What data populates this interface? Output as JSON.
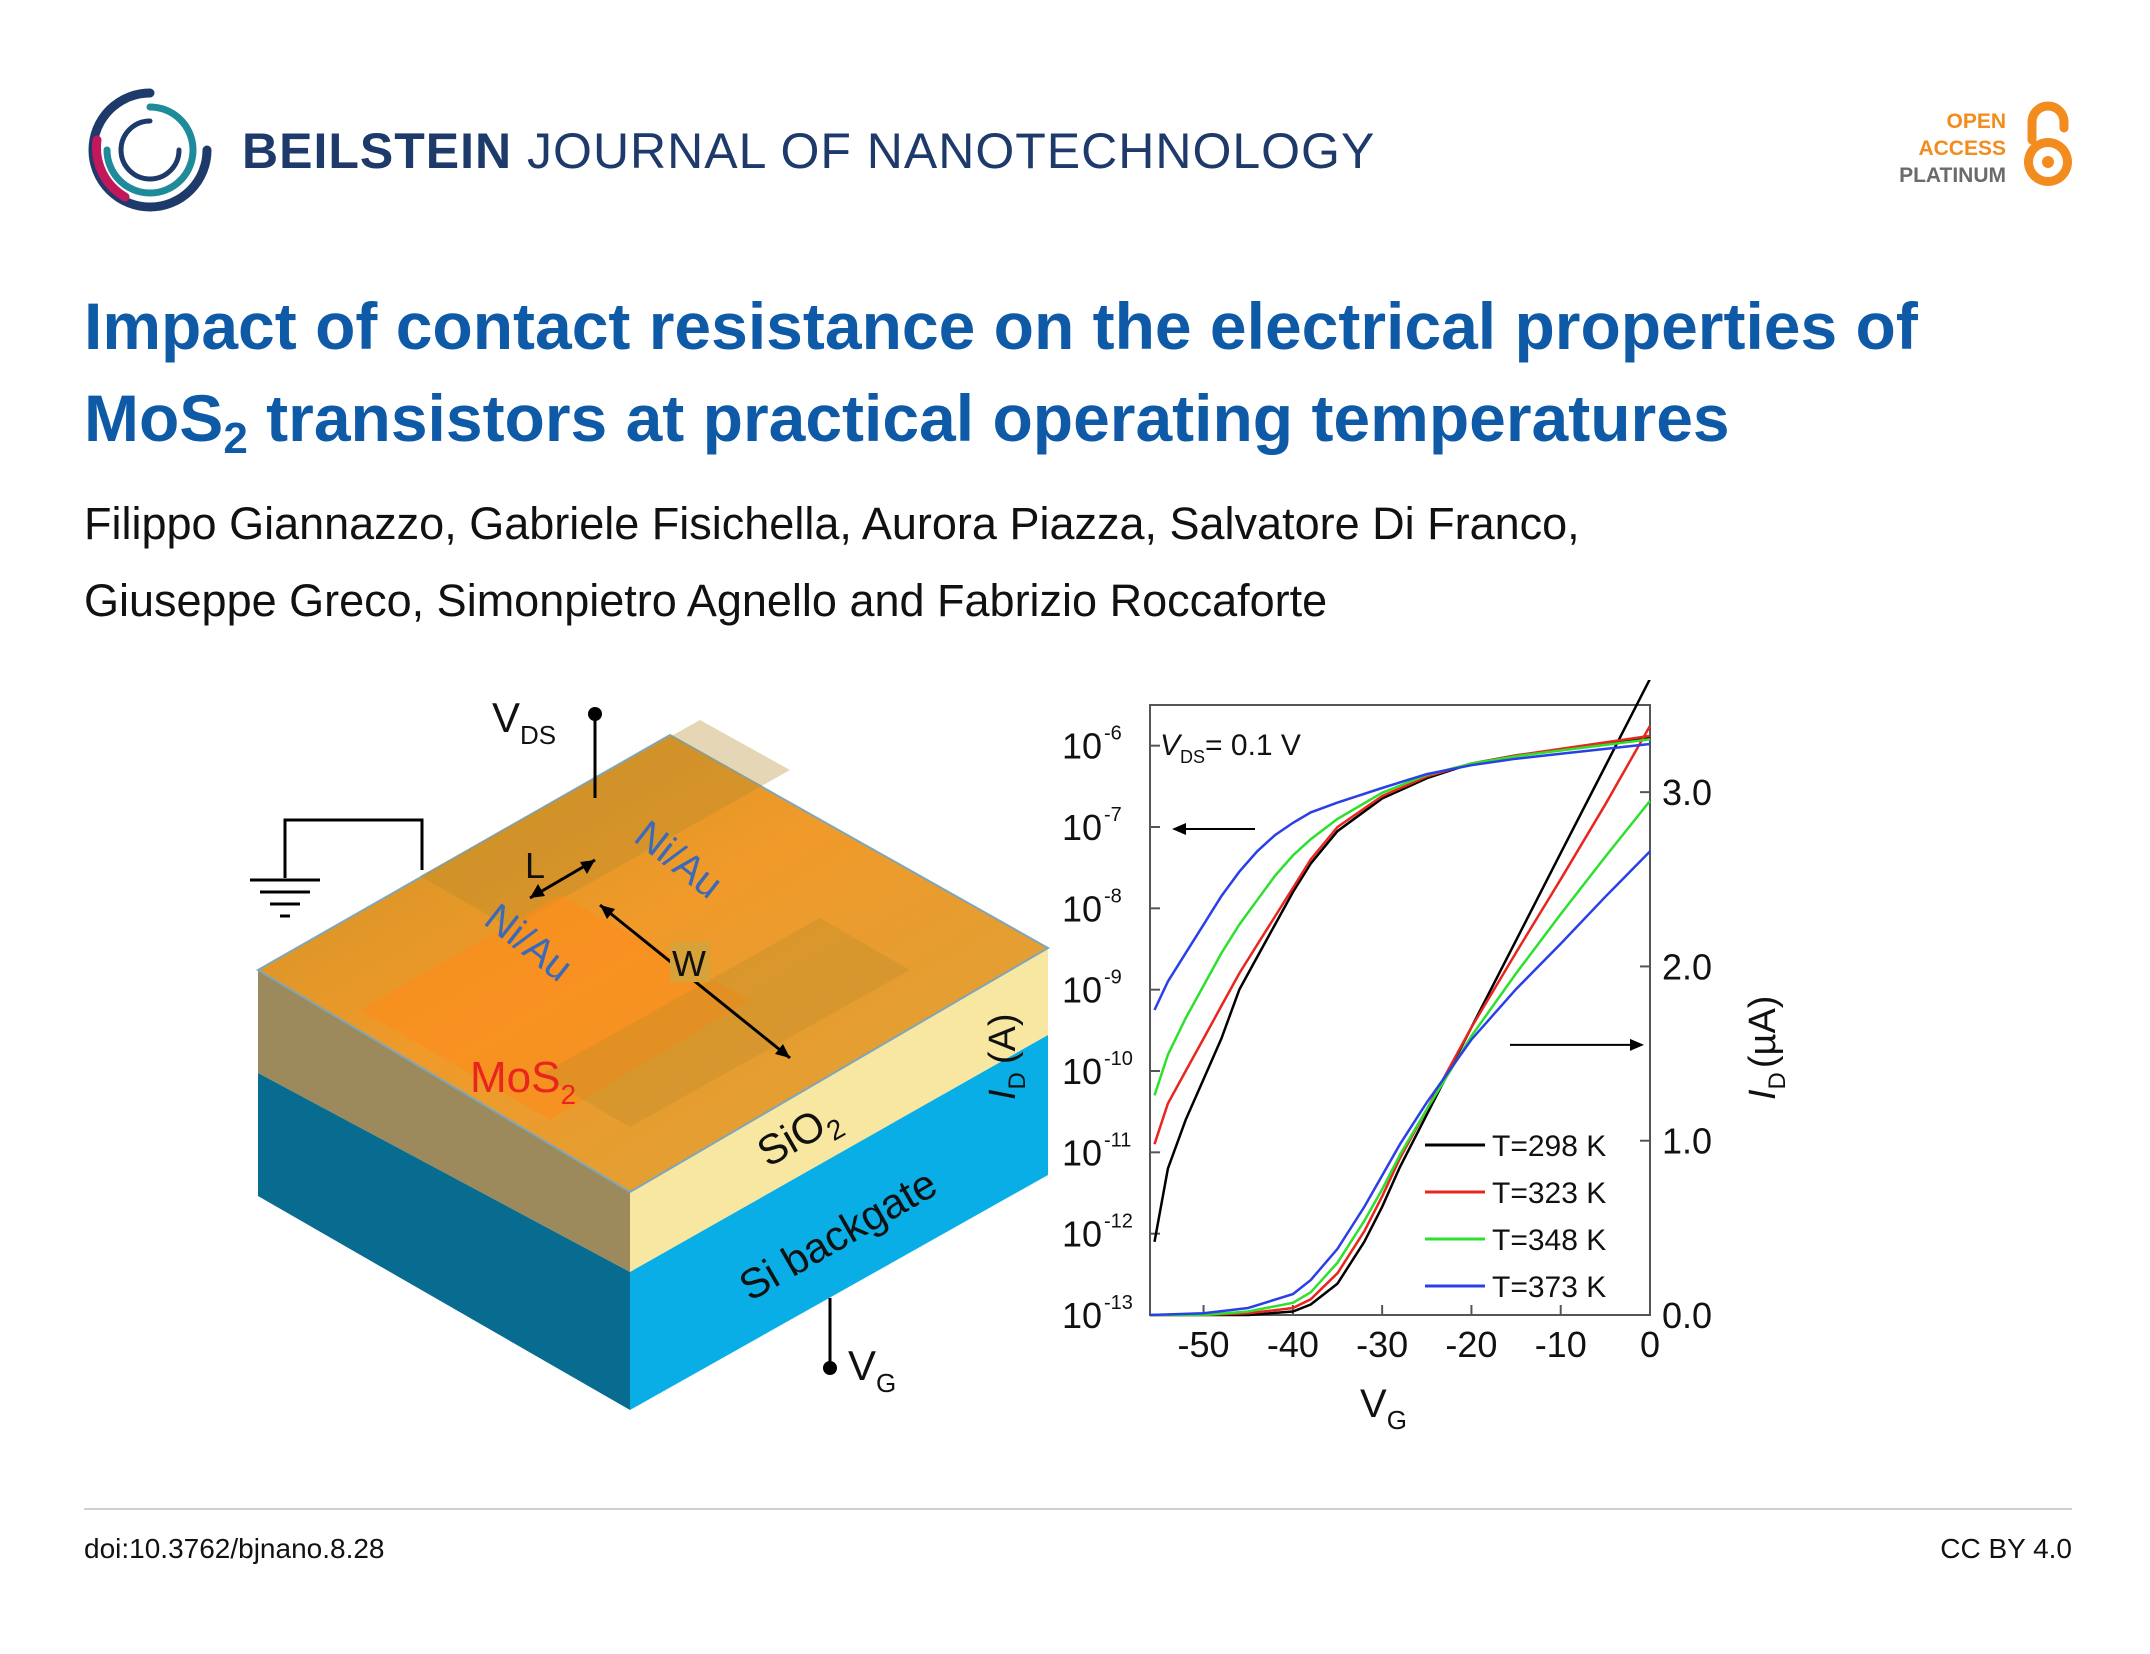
{
  "journal": {
    "name_bold": "BEILSTEIN",
    "name_rest": "JOURNAL OF NANOTECHNOLOGY",
    "logo_icon": "beilstein-swirl-icon"
  },
  "open_access": {
    "line1": "OPEN",
    "line2": "ACCESS",
    "line3": "PLATINUM",
    "icon": "open-lock-icon"
  },
  "article": {
    "title_part1": "Impact of contact resistance on the electrical properties of",
    "title_mos": "MoS",
    "title_sub": "2",
    "title_part2": " transistors at practical operating temperatures",
    "authors_line1": "Filippo Giannazzo, Gabriele Fisichella, Aurora Piazza, Salvatore Di Franco,",
    "authors_line2": "Giuseppe Greco, Simonpietro Agnello and Fabrizio Roccaforte"
  },
  "device_schematic": {
    "vds_label": "V",
    "vds_sub": "DS",
    "vg_label": "V",
    "vg_sub": "G",
    "l_label": "L",
    "w_label": "W",
    "contact_label": "Ni/Au",
    "mos2_label": "MoS",
    "mos2_sub": "2",
    "sio2_label": "SiO",
    "sio2_sub": "2",
    "si_label": "Si backgate"
  },
  "chart_data": {
    "type": "line",
    "xlabel": "V",
    "xlabel_sub": "G",
    "ylabel_left": "I",
    "ylabel_left_sub": "D",
    "ylabel_left_unit": "(A)",
    "ylabel_right": "I",
    "ylabel_right_sub": "D",
    "ylabel_right_unit": "(µA)",
    "annotation": "V",
    "annotation_sub": "DS",
    "annotation_value": "= 0.1 V",
    "xlim": [
      -56,
      0
    ],
    "ylim_left_log10": [
      -13,
      -5.5
    ],
    "ylim_right": [
      0,
      3.5
    ],
    "x_ticks": [
      "-50",
      "-40",
      "-30",
      "-20",
      "-10",
      "0"
    ],
    "x_tick_values": [
      -50,
      -40,
      -30,
      -20,
      -10,
      0
    ],
    "y_left_ticks": [
      "10",
      "10",
      "10",
      "10",
      "10",
      "10",
      "10",
      "10"
    ],
    "y_left_tick_exps": [
      "-6",
      "-7",
      "-8",
      "-9",
      "-10",
      "-11",
      "-12",
      "-13"
    ],
    "y_left_tick_values": [
      -6,
      -7,
      -8,
      -9,
      -10,
      -11,
      -12,
      -13
    ],
    "y_right_ticks": [
      "3.0",
      "2.0",
      "1.0",
      "0.0"
    ],
    "y_right_tick_values": [
      3.0,
      2.0,
      1.0,
      0.0
    ],
    "legend_position": "bottom-right",
    "series": [
      {
        "name": "T=298 K",
        "color": "#000000",
        "log_x": [
          -55.5,
          -54,
          -52,
          -50,
          -48,
          -46,
          -44,
          -42,
          -40,
          -38,
          -35,
          -30,
          -25,
          -20,
          -15,
          -10,
          -5,
          0
        ],
        "log_y": [
          -12.1,
          -11.2,
          -10.6,
          -10.1,
          -9.6,
          -9.0,
          -8.6,
          -8.2,
          -7.8,
          -7.45,
          -7.05,
          -6.65,
          -6.4,
          -6.22,
          -6.12,
          -6.05,
          -5.98,
          -5.9
        ],
        "lin_x": [
          -56,
          -50,
          -45,
          -40,
          -38,
          -35,
          -32,
          -30,
          -28,
          -25,
          -20,
          -15,
          -10,
          -5,
          0
        ],
        "lin_y": [
          0.0,
          0.0,
          0.0,
          0.02,
          0.06,
          0.18,
          0.42,
          0.62,
          0.85,
          1.15,
          1.65,
          2.15,
          2.65,
          3.15,
          3.65
        ]
      },
      {
        "name": "T=323 K",
        "color": "#e8261e",
        "log_x": [
          -55.5,
          -54,
          -52,
          -50,
          -48,
          -46,
          -44,
          -42,
          -40,
          -38,
          -35,
          -30,
          -25,
          -20,
          -15,
          -10,
          -5,
          0
        ],
        "log_y": [
          -10.9,
          -10.4,
          -10.0,
          -9.6,
          -9.2,
          -8.8,
          -8.45,
          -8.1,
          -7.75,
          -7.4,
          -7.0,
          -6.62,
          -6.38,
          -6.22,
          -6.12,
          -6.04,
          -5.96,
          -5.88
        ],
        "lin_x": [
          -56,
          -50,
          -45,
          -40,
          -38,
          -35,
          -32,
          -30,
          -28,
          -25,
          -20,
          -15,
          -10,
          -5,
          0
        ],
        "lin_y": [
          0.0,
          0.0,
          0.01,
          0.04,
          0.09,
          0.24,
          0.48,
          0.68,
          0.9,
          1.18,
          1.65,
          2.08,
          2.5,
          2.93,
          3.38
        ]
      },
      {
        "name": "T=348 K",
        "color": "#2ee02e",
        "log_x": [
          -55.5,
          -54,
          -52,
          -50,
          -48,
          -46,
          -44,
          -42,
          -40,
          -38,
          -35,
          -30,
          -25,
          -20,
          -15,
          -10,
          -5,
          0
        ],
        "log_y": [
          -10.3,
          -9.8,
          -9.35,
          -8.95,
          -8.55,
          -8.2,
          -7.9,
          -7.6,
          -7.35,
          -7.15,
          -6.9,
          -6.58,
          -6.36,
          -6.22,
          -6.13,
          -6.06,
          -5.99,
          -5.92
        ],
        "lin_x": [
          -56,
          -50,
          -45,
          -40,
          -38,
          -35,
          -32,
          -30,
          -28,
          -25,
          -20,
          -15,
          -10,
          -5,
          0
        ],
        "lin_y": [
          0.0,
          0.0,
          0.02,
          0.07,
          0.13,
          0.3,
          0.54,
          0.72,
          0.92,
          1.18,
          1.6,
          1.96,
          2.3,
          2.63,
          2.95
        ]
      },
      {
        "name": "T=373 K",
        "color": "#2b3fe8",
        "log_x": [
          -55.5,
          -54,
          -52,
          -50,
          -48,
          -46,
          -44,
          -42,
          -40,
          -38,
          -35,
          -30,
          -25,
          -20,
          -15,
          -10,
          -5,
          0
        ],
        "log_y": [
          -9.25,
          -8.9,
          -8.55,
          -8.2,
          -7.85,
          -7.55,
          -7.3,
          -7.1,
          -6.95,
          -6.82,
          -6.7,
          -6.52,
          -6.35,
          -6.24,
          -6.16,
          -6.1,
          -6.04,
          -5.98
        ],
        "lin_x": [
          -56,
          -50,
          -45,
          -40,
          -38,
          -35,
          -32,
          -30,
          -28,
          -25,
          -20,
          -15,
          -10,
          -5,
          0
        ],
        "lin_y": [
          0.0,
          0.01,
          0.04,
          0.12,
          0.2,
          0.38,
          0.62,
          0.8,
          0.98,
          1.22,
          1.58,
          1.87,
          2.13,
          2.4,
          2.66
        ]
      }
    ]
  },
  "footer": {
    "doi": "doi:10.3762/bjnano.8.28",
    "license": "CC BY 4.0"
  }
}
